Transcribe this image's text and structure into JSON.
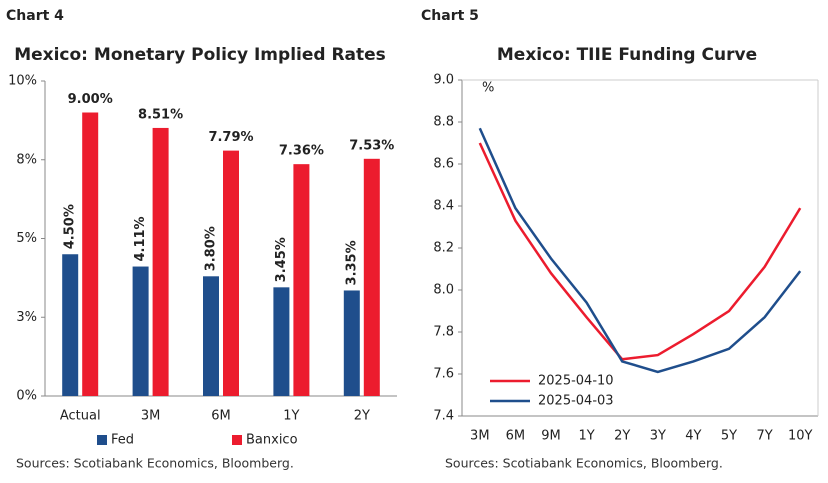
{
  "chart_data": [
    {
      "type": "bar",
      "label": "Chart 4",
      "title": "Mexico: Monetary Policy Implied Rates",
      "categories": [
        "Actual",
        "3M",
        "6M",
        "1Y",
        "2Y"
      ],
      "series": [
        {
          "name": "Fed",
          "color": "#1f4e8c",
          "values": [
            4.5,
            4.11,
            3.8,
            3.45,
            3.35
          ],
          "value_labels": [
            "4.50%",
            "4.11%",
            "3.80%",
            "3.45%",
            "3.35%"
          ]
        },
        {
          "name": "Banxico",
          "color": "#ec1c2e",
          "values": [
            9.0,
            8.51,
            7.79,
            7.36,
            7.53
          ],
          "value_labels": [
            "9.00%",
            "8.51%",
            "7.79%",
            "7.36%",
            "7.53%"
          ]
        }
      ],
      "ylim": [
        0,
        10
      ],
      "yticks": [
        {
          "value": 0,
          "label": "0%"
        },
        {
          "value": 2.5,
          "label": "3%"
        },
        {
          "value": 5,
          "label": "5%"
        },
        {
          "value": 7.5,
          "label": "8%"
        },
        {
          "value": 10,
          "label": "10%"
        }
      ],
      "legend": "bottom",
      "source": "Sources: Scotiabank Economics, Bloomberg."
    },
    {
      "type": "line",
      "label": "Chart 5",
      "title": "Mexico: TIIE Funding Curve",
      "y_unit": "%",
      "categories": [
        "3M",
        "6M",
        "9M",
        "1Y",
        "2Y",
        "3Y",
        "4Y",
        "5Y",
        "7Y",
        "10Y"
      ],
      "series": [
        {
          "name": "2025-04-10",
          "color": "#ec1c2e",
          "values": [
            8.7,
            8.33,
            8.08,
            7.87,
            7.67,
            7.69,
            7.79,
            7.9,
            8.11,
            8.39
          ]
        },
        {
          "name": "2025-04-03",
          "color": "#1f4e8c",
          "values": [
            8.77,
            8.39,
            8.15,
            7.94,
            7.66,
            7.61,
            7.66,
            7.72,
            7.87,
            8.09
          ]
        }
      ],
      "ylim": [
        7.4,
        9.0
      ],
      "yticks": [
        7.4,
        7.6,
        7.8,
        {
          "value": 8,
          "label": "8.0"
        },
        8.2,
        8.4,
        8.6,
        8.8,
        {
          "value": 9,
          "label": "9.0"
        }
      ],
      "legend": "lower left",
      "source": "Sources: Scotiabank Economics, Bloomberg."
    }
  ]
}
